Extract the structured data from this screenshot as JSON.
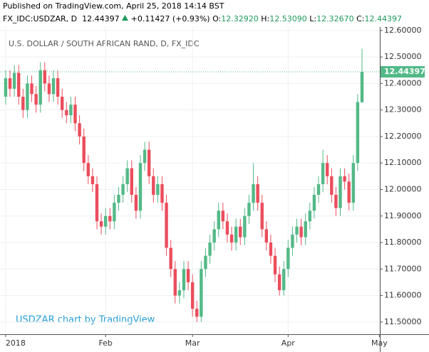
{
  "header": {
    "published": "Published on TradingView.com, April 25, 2018 14:14 BST",
    "symbol": "FX_IDC:USDZAR, D",
    "price": "12.44397",
    "change": "+0.11427 (+0.93%)",
    "open_label": "O:",
    "open": "12.32920",
    "high_label": "H:",
    "high": "12.53090",
    "low_label": "L:",
    "low": "12.32670",
    "close_label": "C:",
    "close": "12.44397"
  },
  "chart_data": {
    "type": "candlestick",
    "title": "U.S. DOLLAR / SOUTH AFRICAN RAND, D, FX_IDC",
    "watermark": "USDZAR chart by TradingView",
    "up_color": "#53b987",
    "down_color": "#eb4d5c",
    "grid": true,
    "last_price_label": "12.44397",
    "open": [
      12.35,
      12.42,
      12.38,
      12.44,
      12.35,
      12.3,
      12.4,
      12.36,
      12.32,
      12.45,
      12.4,
      12.36,
      12.42,
      12.35,
      12.3,
      12.28,
      12.32,
      12.25,
      12.2,
      12.1,
      12.05,
      12.02,
      11.88,
      11.86,
      11.9,
      11.88,
      11.95,
      11.98,
      12.02,
      12.08,
      11.98,
      11.92,
      12.1,
      12.15,
      12.05,
      11.98,
      12.02,
      11.95,
      11.78,
      11.7,
      11.6,
      11.62,
      11.7,
      11.65,
      11.55,
      11.52,
      11.7,
      11.75,
      11.8,
      11.85,
      11.92,
      11.88,
      11.83,
      11.8,
      11.86,
      11.82,
      11.9,
      11.95,
      12.02,
      11.95,
      11.85,
      11.8,
      11.75,
      11.68,
      11.62,
      11.7,
      11.78,
      11.83,
      11.86,
      11.82,
      11.88,
      11.92,
      11.98,
      12.02,
      12.1,
      12.05,
      11.98,
      11.93,
      12.05,
      12.03,
      11.95,
      12.1,
      12.3292
    ],
    "high": [
      12.45,
      12.45,
      12.47,
      12.47,
      12.38,
      12.43,
      12.43,
      12.39,
      12.48,
      12.48,
      12.43,
      12.45,
      12.45,
      12.38,
      12.33,
      12.35,
      12.35,
      12.28,
      12.23,
      12.13,
      12.08,
      12.05,
      11.91,
      11.93,
      11.93,
      11.98,
      12.01,
      12.05,
      12.11,
      12.11,
      12.01,
      12.13,
      12.18,
      12.18,
      12.08,
      12.05,
      12.05,
      11.98,
      11.81,
      11.73,
      11.65,
      11.73,
      11.73,
      11.68,
      11.58,
      11.73,
      11.78,
      11.83,
      11.88,
      11.95,
      11.95,
      11.91,
      11.86,
      11.89,
      11.89,
      11.93,
      11.98,
      12.1,
      12.05,
      11.98,
      11.88,
      11.83,
      11.78,
      11.71,
      11.73,
      11.81,
      11.86,
      11.89,
      11.89,
      11.91,
      11.95,
      12.01,
      12.05,
      12.15,
      12.13,
      12.08,
      12.01,
      12.08,
      12.08,
      12.06,
      12.13,
      12.36,
      12.5309
    ],
    "low": [
      12.32,
      12.35,
      12.35,
      12.32,
      12.27,
      12.27,
      12.33,
      12.29,
      12.29,
      12.37,
      12.33,
      12.33,
      12.32,
      12.27,
      12.25,
      12.25,
      12.22,
      12.17,
      12.07,
      12.02,
      11.99,
      11.85,
      11.83,
      11.83,
      11.85,
      11.85,
      11.92,
      11.95,
      11.99,
      11.95,
      11.89,
      11.89,
      12.07,
      12.02,
      11.95,
      11.95,
      11.92,
      11.75,
      11.67,
      11.57,
      11.57,
      11.59,
      11.62,
      11.52,
      11.5,
      11.5,
      11.67,
      11.72,
      11.77,
      11.82,
      11.85,
      11.8,
      11.77,
      11.77,
      11.79,
      11.79,
      11.87,
      11.92,
      11.92,
      11.82,
      11.77,
      11.72,
      11.65,
      11.6,
      11.6,
      11.67,
      11.75,
      11.8,
      11.79,
      11.79,
      11.85,
      11.89,
      11.95,
      11.99,
      12.02,
      11.95,
      11.9,
      11.9,
      12.0,
      11.92,
      11.92,
      12.07,
      12.3267
    ],
    "close": [
      12.42,
      12.38,
      12.44,
      12.35,
      12.3,
      12.4,
      12.36,
      12.32,
      12.45,
      12.4,
      12.36,
      12.42,
      12.35,
      12.3,
      12.28,
      12.32,
      12.25,
      12.2,
      12.1,
      12.05,
      12.02,
      11.88,
      11.86,
      11.9,
      11.88,
      11.95,
      11.98,
      12.02,
      12.08,
      11.98,
      11.92,
      12.1,
      12.15,
      12.05,
      11.98,
      12.02,
      11.95,
      11.78,
      11.7,
      11.6,
      11.62,
      11.7,
      11.65,
      11.55,
      11.52,
      11.7,
      11.75,
      11.8,
      11.85,
      11.92,
      11.88,
      11.83,
      11.8,
      11.86,
      11.82,
      11.9,
      11.95,
      12.02,
      11.95,
      11.85,
      11.8,
      11.75,
      11.68,
      11.62,
      11.7,
      11.78,
      11.83,
      11.86,
      11.82,
      11.88,
      11.92,
      11.98,
      12.02,
      12.1,
      12.05,
      11.98,
      11.93,
      12.05,
      12.03,
      11.95,
      12.1,
      12.33,
      12.44397
    ],
    "xlim": [
      -1.3,
      86.1
    ],
    "xticks": [
      {
        "value": 0,
        "label": "2018"
      },
      {
        "value": 23,
        "label": "Feb"
      },
      {
        "value": 43,
        "label": "Mar"
      },
      {
        "value": 65,
        "label": "Apr"
      },
      {
        "value": 86,
        "label": "May"
      }
    ],
    "ylim": [
      11.454,
      12.613
    ],
    "yticks": [
      {
        "value": 11.5,
        "label": "11.50000"
      },
      {
        "value": 11.6,
        "label": "11.60000"
      },
      {
        "value": 11.7,
        "label": "11.70000"
      },
      {
        "value": 11.8,
        "label": "11.80000"
      },
      {
        "value": 11.9,
        "label": "11.90000"
      },
      {
        "value": 12.0,
        "label": "12.00000"
      },
      {
        "value": 12.1,
        "label": "12.10000"
      },
      {
        "value": 12.2,
        "label": "12.20000"
      },
      {
        "value": 12.3,
        "label": "12.30000"
      },
      {
        "value": 12.4,
        "label": "12.40000"
      },
      {
        "value": 12.5,
        "label": "12.50000"
      },
      {
        "value": 12.6,
        "label": "12.60000"
      }
    ]
  }
}
